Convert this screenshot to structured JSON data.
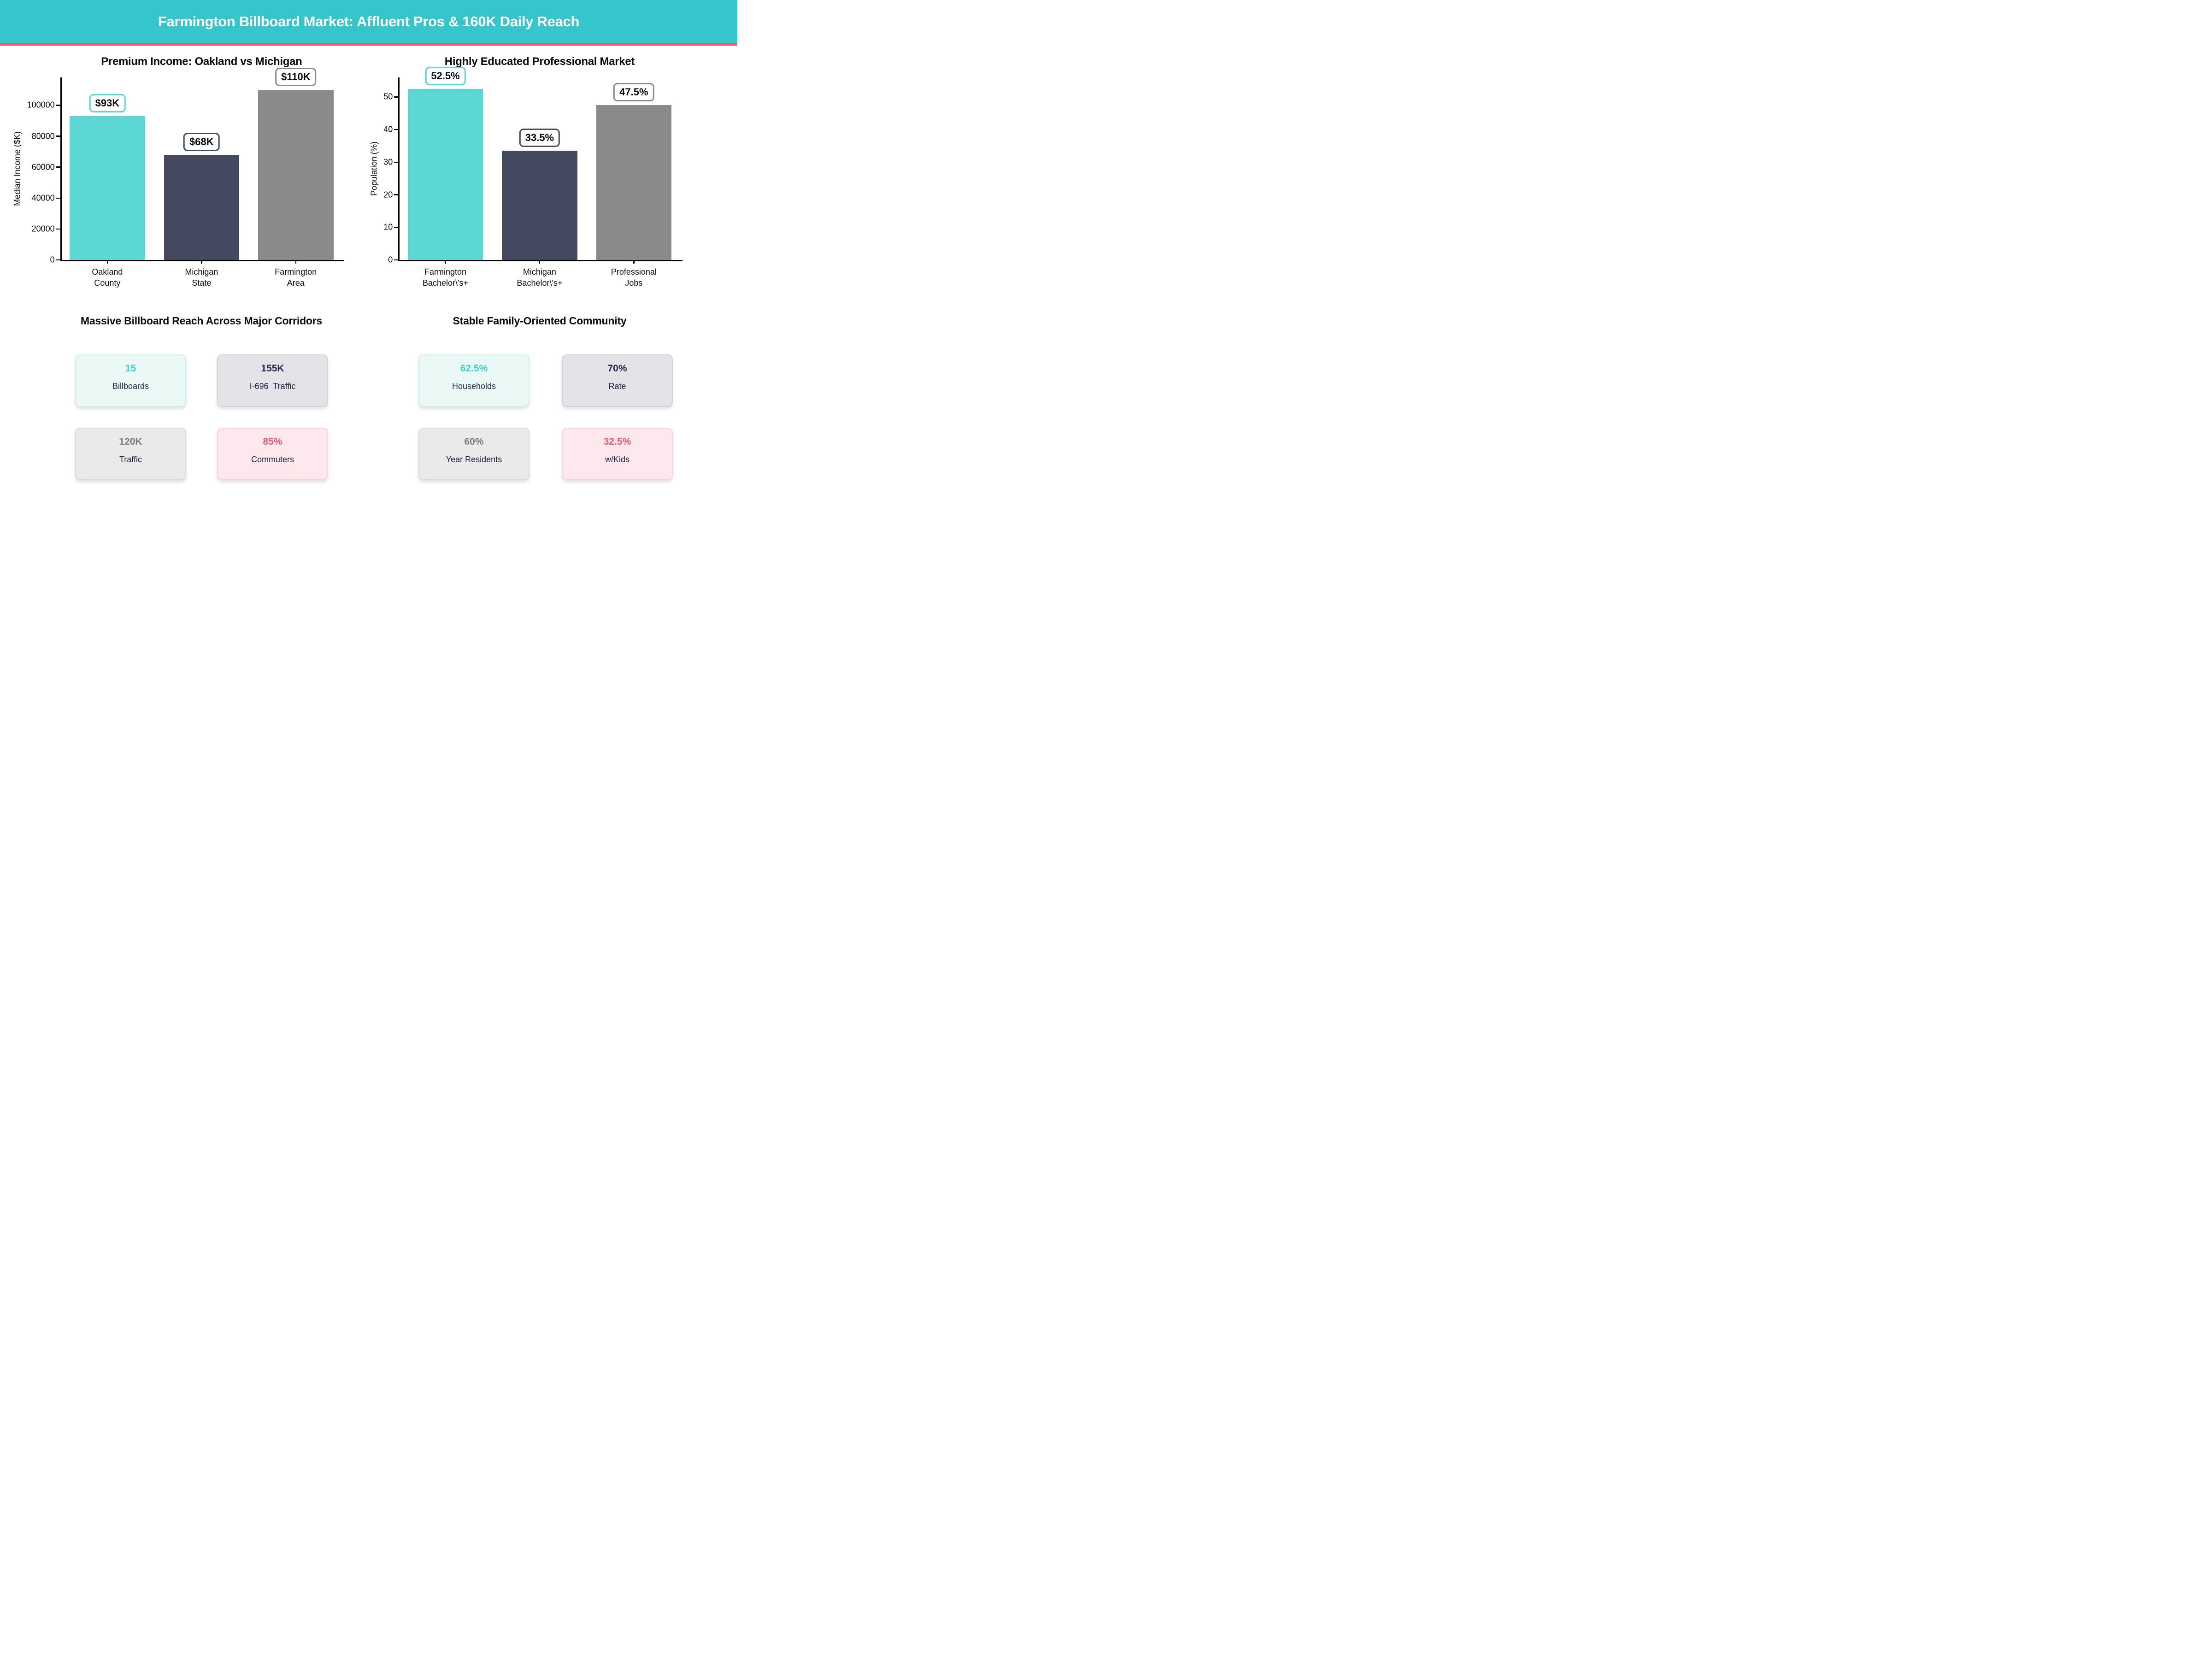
{
  "header": {
    "title": "Farmington Billboard Market: Affluent Pros & 160K Daily Reach"
  },
  "colors": {
    "banner_bg": "#35c6cb",
    "banner_text": "#ffffff",
    "accent_line": "#ee5a74",
    "axis": "#000000",
    "chart_text": "#0a0a0a",
    "card_label": "#1b2240"
  },
  "card_themes": {
    "teal": {
      "bg": "#eaf9f6",
      "border": "#cdeeea",
      "value": "#3ecfca"
    },
    "slate": {
      "bg": "#e3e3e8",
      "border": "#d1d1d8",
      "value": "#232c4e"
    },
    "gray": {
      "bg": "#eaeaea",
      "border": "#dadada",
      "value": "#7c7c7c"
    },
    "pink": {
      "bg": "#fde9ed",
      "border": "#f9d2da",
      "value": "#ee5572"
    }
  },
  "chart_data": [
    {
      "type": "bar",
      "title": "Premium Income: Oakland vs Michigan",
      "categories": [
        "Oakland\nCounty",
        "Michigan\nState",
        "Farmington\nArea"
      ],
      "values": [
        93000,
        68000,
        110000
      ],
      "bar_labels": [
        "$93K",
        "$68K",
        "$110K"
      ],
      "bar_colors": [
        "#5cd6d2",
        "#434a60",
        "#8a8a8a"
      ],
      "xlabel": "",
      "ylabel": "Median Income ($K)",
      "ylim": [
        0,
        118000
      ],
      "yticks": [
        0,
        20000,
        40000,
        60000,
        80000,
        100000
      ],
      "ytick_labels": [
        "0",
        "20000",
        "40000",
        "60000",
        "80000",
        "100000"
      ],
      "grid": false,
      "legend": null
    },
    {
      "type": "bar",
      "title": "Highly Educated Professional Market",
      "categories": [
        "Farmington\nBachelor\\'s+",
        "Michigan\nBachelor\\'s+",
        "Professional\nJobs"
      ],
      "values": [
        52.5,
        33.5,
        47.5
      ],
      "bar_labels": [
        "52.5%",
        "33.5%",
        "47.5%"
      ],
      "bar_colors": [
        "#5cd6d2",
        "#434a60",
        "#8a8a8a"
      ],
      "xlabel": "",
      "ylabel": "Population (%)",
      "ylim": [
        0,
        56
      ],
      "yticks": [
        0,
        10,
        20,
        30,
        40,
        50
      ],
      "ytick_labels": [
        "0",
        "10",
        "20",
        "30",
        "40",
        "50"
      ],
      "grid": false,
      "legend": null
    }
  ],
  "sections": [
    {
      "title": "Massive Billboard Reach Across Major Corridors",
      "cards": [
        {
          "value": "15",
          "label": "Billboards",
          "theme": "teal"
        },
        {
          "value": "155K",
          "label": "I-696  Traffic",
          "theme": "slate"
        },
        {
          "value": "120K",
          "label": "Traffic",
          "theme": "gray"
        },
        {
          "value": "85%",
          "label": "Commuters",
          "theme": "pink"
        }
      ]
    },
    {
      "title": "Stable Family-Oriented Community",
      "cards": [
        {
          "value": "62.5%",
          "label": "Households",
          "theme": "teal"
        },
        {
          "value": "70%",
          "label": "Rate",
          "theme": "slate"
        },
        {
          "value": "60%",
          "label": "Year Residents",
          "theme": "gray"
        },
        {
          "value": "32.5%",
          "label": "w/Kids",
          "theme": "pink"
        }
      ]
    }
  ]
}
